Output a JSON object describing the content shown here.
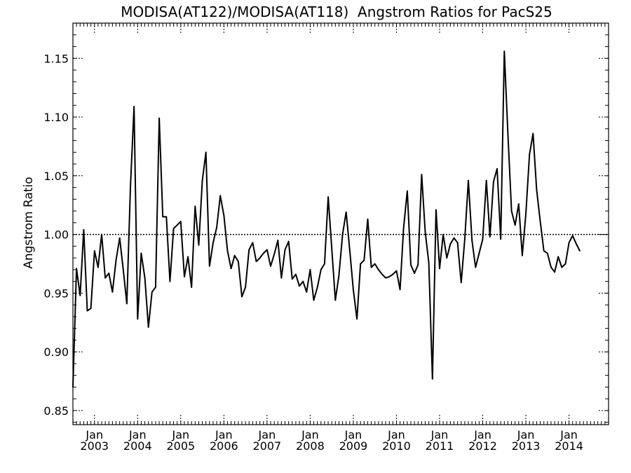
{
  "chart_data": {
    "type": "line",
    "title": "MODISA(AT122)/MODISA(AT118)  Angstrom Ratios for PacS25",
    "xlabel": "",
    "ylabel": "Angstrom Ratio",
    "ylim": [
      0.838,
      1.18
    ],
    "xlim": [
      "2002-07",
      "2014-12"
    ],
    "grid": false,
    "y_ticks": [
      "0.85",
      "0.90",
      "0.95",
      "1.00",
      "1.05",
      "1.10",
      "1.15"
    ],
    "x_ticks": [
      {
        "month": "Jan",
        "year": "2003",
        "date": "2003-01"
      },
      {
        "month": "Jan",
        "year": "2004",
        "date": "2004-01"
      },
      {
        "month": "Jan",
        "year": "2005",
        "date": "2005-01"
      },
      {
        "month": "Jan",
        "year": "2006",
        "date": "2006-01"
      },
      {
        "month": "Jan",
        "year": "2007",
        "date": "2007-01"
      },
      {
        "month": "Jan",
        "year": "2008",
        "date": "2008-01"
      },
      {
        "month": "Jan",
        "year": "2009",
        "date": "2009-01"
      },
      {
        "month": "Jan",
        "year": "2010",
        "date": "2010-01"
      },
      {
        "month": "Jan",
        "year": "2011",
        "date": "2011-01"
      },
      {
        "month": "Jan",
        "year": "2012",
        "date": "2012-01"
      },
      {
        "month": "Jan",
        "year": "2013",
        "date": "2013-01"
      },
      {
        "month": "Jan",
        "year": "2014",
        "date": "2014-01"
      }
    ],
    "reference_line": {
      "y": 1.0,
      "style": "dotted"
    },
    "series": [
      {
        "start": "2002-07",
        "interval": "month",
        "color": "#000000",
        "values": [
          0.87,
          0.971,
          0.948,
          1.004,
          0.935,
          0.937,
          0.986,
          0.972,
          1.0,
          0.963,
          0.967,
          0.951,
          0.978,
          0.997,
          0.97,
          0.941,
          1.04,
          1.109,
          0.928,
          0.984,
          0.963,
          0.921,
          0.951,
          0.955,
          1.099,
          1.015,
          1.015,
          0.96,
          1.005,
          1.008,
          1.011,
          0.964,
          0.981,
          0.955,
          1.024,
          0.991,
          1.046,
          1.07,
          0.973,
          0.993,
          1.006,
          1.033,
          1.016,
          0.986,
          0.971,
          0.982,
          0.977,
          0.947,
          0.955,
          0.987,
          0.993,
          0.977,
          0.98,
          0.984,
          0.987,
          0.973,
          0.983,
          0.995,
          0.963,
          0.987,
          0.994,
          0.962,
          0.966,
          0.956,
          0.96,
          0.951,
          0.97,
          0.944,
          0.955,
          0.97,
          0.975,
          1.032,
          0.988,
          0.944,
          0.965,
          1.0,
          1.019,
          0.987,
          0.953,
          0.928,
          0.975,
          0.978,
          1.013,
          0.972,
          0.975,
          0.97,
          0.966,
          0.963,
          0.964,
          0.966,
          0.969,
          0.953,
          1.006,
          1.037,
          0.974,
          0.967,
          0.974,
          1.051,
          1.002,
          0.976,
          0.877,
          1.021,
          0.971,
          1.0,
          0.98,
          0.992,
          0.997,
          0.993,
          0.959,
          0.996,
          1.046,
          0.995,
          0.972,
          0.984,
          0.996,
          1.046,
          0.998,
          1.045,
          1.056,
          0.996,
          1.156,
          1.086,
          1.02,
          1.008,
          1.026,
          0.982,
          1.018,
          1.068,
          1.086,
          1.038,
          1.011,
          0.986,
          0.984,
          0.972,
          0.968,
          0.981,
          0.972,
          0.975,
          0.993,
          0.999,
          0.992,
          0.986
        ]
      }
    ]
  }
}
